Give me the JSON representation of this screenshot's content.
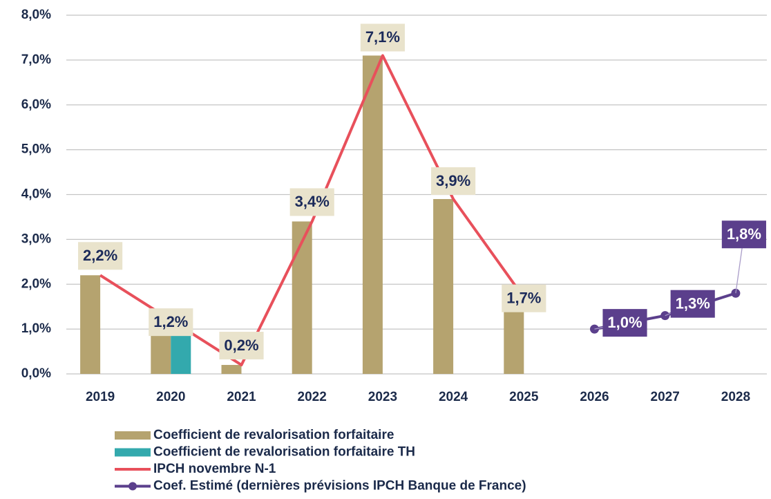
{
  "chart_data": {
    "type": "bar",
    "categories": [
      "2019",
      "2020",
      "2021",
      "2022",
      "2023",
      "2024",
      "2025",
      "2026",
      "2027",
      "2028"
    ],
    "ylim": [
      0,
      8
    ],
    "yticks": [
      {
        "value": 0,
        "label": "0,0%"
      },
      {
        "value": 1,
        "label": "1,0%"
      },
      {
        "value": 2,
        "label": "2,0%"
      },
      {
        "value": 3,
        "label": "3,0%"
      },
      {
        "value": 4,
        "label": "4,0%"
      },
      {
        "value": 5,
        "label": "5,0%"
      },
      {
        "value": 6,
        "label": "6,0%"
      },
      {
        "value": 7,
        "label": "7,0%"
      },
      {
        "value": 8,
        "label": "8,0%"
      }
    ],
    "grid": true,
    "series": [
      {
        "name": "Coefficient de revalorisation forfaitaire",
        "type": "bar",
        "color": "#b5a36f",
        "values": [
          2.2,
          1.2,
          0.2,
          3.4,
          7.1,
          3.9,
          1.7,
          null,
          null,
          null
        ],
        "value_labels": [
          "2,2%",
          "1,2%",
          "0,2%",
          "3,4%",
          "7,1%",
          "3,9%",
          "1,7%",
          null,
          null,
          null
        ]
      },
      {
        "name": "Coefficient de revalorisation forfaitaire TH",
        "type": "bar",
        "color": "#33a9ad",
        "values": [
          null,
          0.9,
          null,
          null,
          null,
          null,
          null,
          null,
          null,
          null
        ]
      },
      {
        "name": "IPCH novembre N-1",
        "type": "line",
        "color": "#e8505b",
        "values": [
          2.2,
          1.2,
          0.2,
          3.4,
          7.1,
          3.9,
          1.7,
          null,
          null,
          null
        ]
      },
      {
        "name": "Coef. Estimé (dernières prévisions IPCH Banque de France)",
        "type": "line",
        "marker": true,
        "color": "#5b3f8c",
        "values": [
          null,
          null,
          null,
          null,
          null,
          null,
          null,
          1.0,
          1.3,
          1.8
        ],
        "value_labels": [
          null,
          null,
          null,
          null,
          null,
          null,
          null,
          "1,0%",
          "1,3%",
          "1,8%"
        ]
      }
    ]
  }
}
